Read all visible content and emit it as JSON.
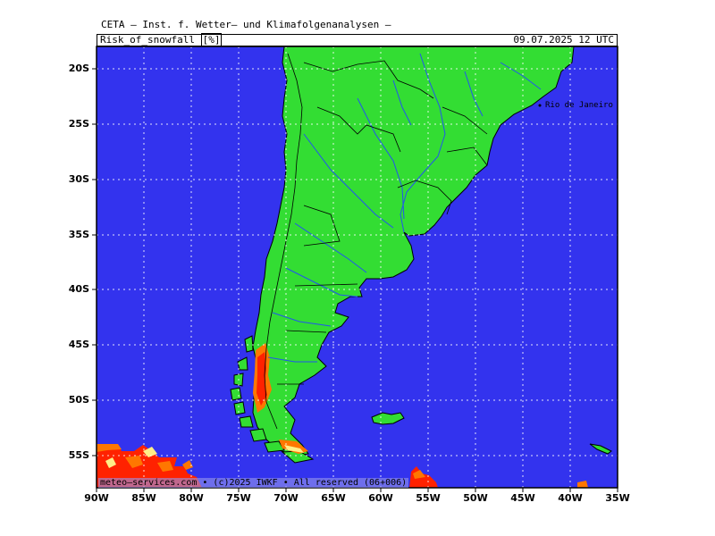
{
  "header": {
    "title": "CETA — Inst. f. Wetter— und Klimafolgenanalysen —",
    "parameter": "Risk_of_snowfall",
    "unit": "[%]",
    "valid_time": "09.07.2025  12 UTC"
  },
  "map": {
    "lat_labels": [
      "20S",
      "25S",
      "30S",
      "35S",
      "40S",
      "45S",
      "50S",
      "55S"
    ],
    "lon_labels": [
      "90W",
      "85W",
      "80W",
      "75W",
      "70W",
      "65W",
      "60W",
      "55W",
      "50W",
      "45W",
      "40W",
      "35W"
    ],
    "lat_range": [
      -57.8,
      -17.4
    ],
    "lon_range": [
      -90,
      -35
    ],
    "colors": {
      "ocean": "#3333ee",
      "land": "#33dd33",
      "snow_low": "#ff7700",
      "snow_high": "#ff2200",
      "snow_edge": "#ffee88"
    },
    "city": "Rio de Janeiro",
    "footer": "meteo—services.com • (c)2025 IWKF • All reserved (06+006)"
  }
}
